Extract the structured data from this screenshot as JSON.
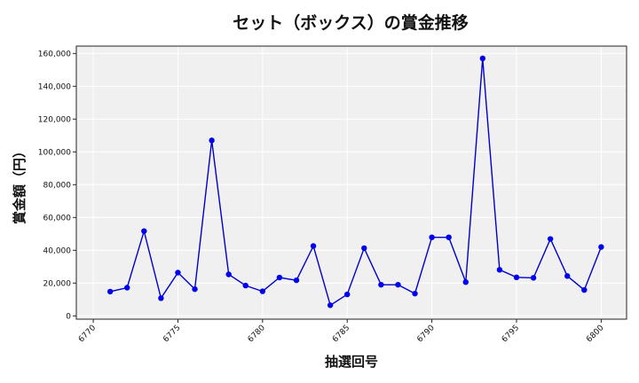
{
  "chart_data": {
    "type": "line",
    "title": "セット（ボックス）の賞金推移",
    "xlabel": "抽選回号",
    "ylabel": "賞金額（円）",
    "xlim": [
      6769.0,
      6801.5
    ],
    "ylim": [
      -2000,
      164500
    ],
    "xticks": [
      6770,
      6775,
      6780,
      6785,
      6790,
      6795,
      6800
    ],
    "yticks": [
      0,
      20000,
      40000,
      60000,
      80000,
      100000,
      120000,
      140000,
      160000
    ],
    "xtick_labels": [
      "6770",
      "6775",
      "6780",
      "6785",
      "6790",
      "6795",
      "6800"
    ],
    "ytick_labels": [
      "0",
      "20,000",
      "40,000",
      "60,000",
      "80,000",
      "100,000",
      "120,000",
      "140,000",
      "160,000"
    ],
    "grid": true,
    "line_color": "#0000cc",
    "marker_color": "#0000ee",
    "plot_bg": "#f0f0f0",
    "series": [
      {
        "x": [
          6771,
          6772,
          6773,
          6774,
          6775,
          6776,
          6777,
          6778,
          6779,
          6780,
          6781,
          6782,
          6783,
          6784,
          6785,
          6786,
          6787,
          6788,
          6789,
          6790,
          6791,
          6792,
          6793,
          6794,
          6795,
          6796,
          6797,
          6798,
          6799,
          6800
        ],
        "values": [
          14800,
          17200,
          51700,
          10800,
          26400,
          16300,
          107000,
          25300,
          18500,
          15000,
          23400,
          21700,
          42600,
          6500,
          13100,
          41300,
          19000,
          19000,
          13600,
          47900,
          47900,
          20600,
          157000,
          28100,
          23500,
          23200,
          46900,
          24300,
          15800,
          42000
        ]
      }
    ]
  }
}
